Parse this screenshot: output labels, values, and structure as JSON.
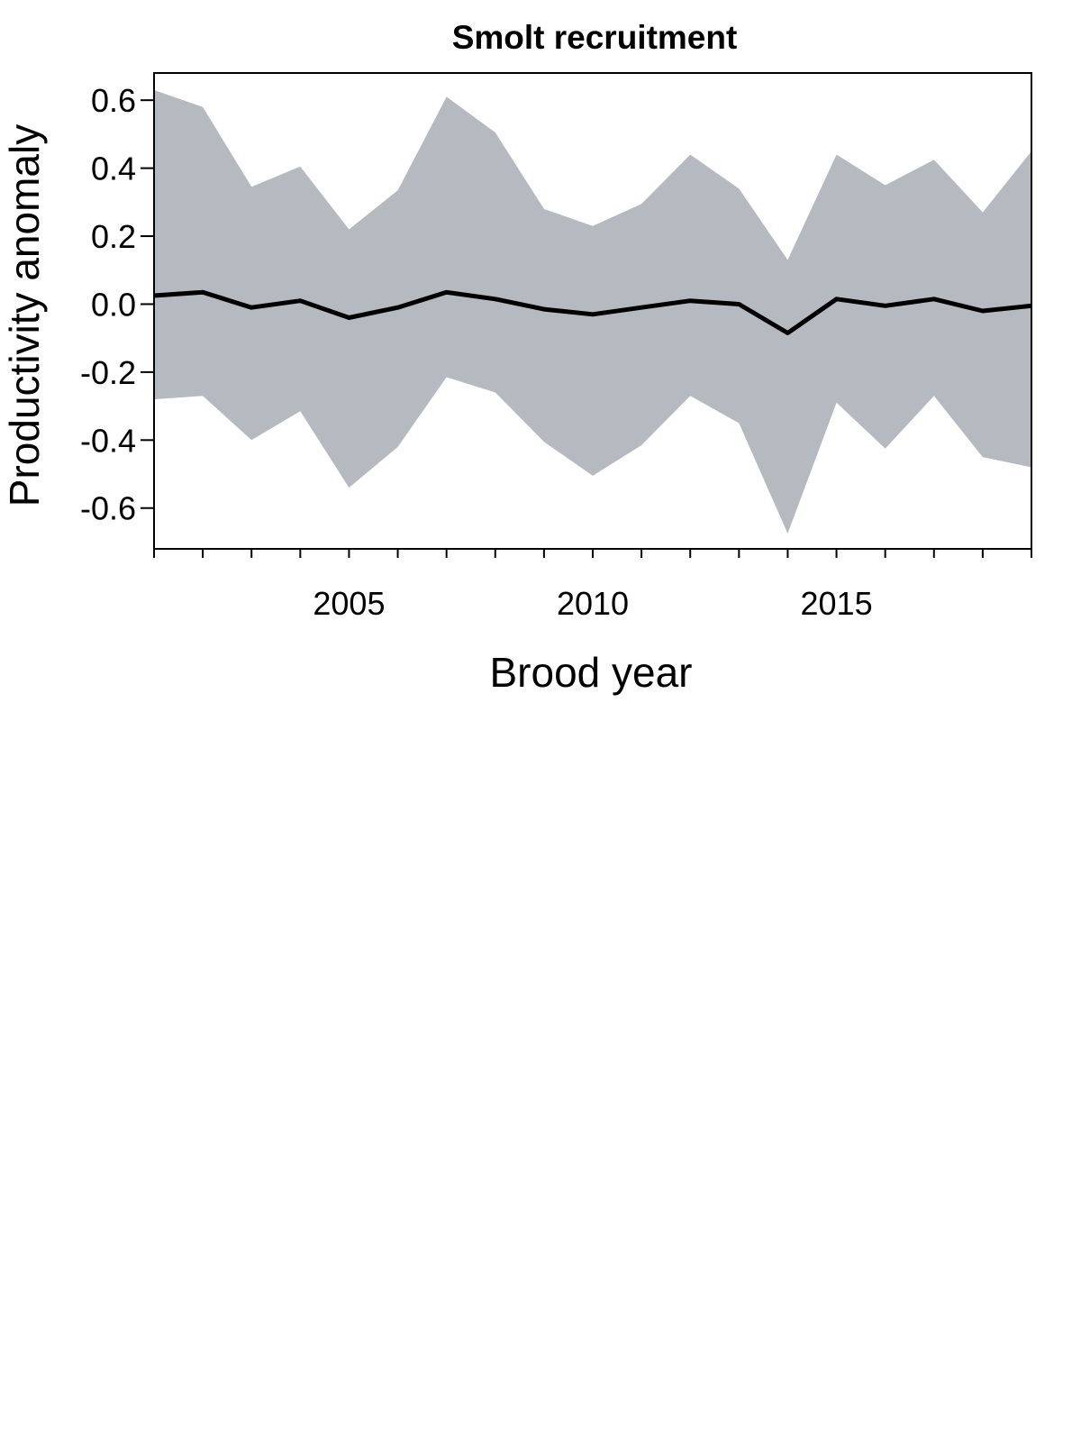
{
  "chart_data": {
    "type": "area",
    "title": "Smolt recruitment",
    "xlabel": "Brood year",
    "ylabel": "Productivity anomaly",
    "xlim": [
      2001,
      2019
    ],
    "ylim": [
      -0.72,
      0.68
    ],
    "x_ticks": [
      2005,
      2010,
      2015
    ],
    "x_minor_ticks": [
      2001,
      2002,
      2003,
      2004,
      2005,
      2006,
      2007,
      2008,
      2009,
      2010,
      2011,
      2012,
      2013,
      2014,
      2015,
      2016,
      2017,
      2018,
      2019
    ],
    "y_ticks": [
      0.6,
      0.4,
      0.2,
      0.0,
      -0.2,
      -0.4,
      -0.6
    ],
    "y_tick_labels": [
      "0.6",
      "0.4",
      "0.2",
      "0.0",
      "-0.2",
      "-0.4",
      "-0.6"
    ],
    "x_tick_labels": [
      "2005",
      "2010",
      "2015"
    ],
    "grid": false,
    "legend": "none",
    "colors": {
      "band": "#b5bac1",
      "line": "#000000",
      "axes": "#000000"
    },
    "x": [
      2001,
      2002,
      2003,
      2004,
      2005,
      2006,
      2007,
      2008,
      2009,
      2010,
      2011,
      2012,
      2013,
      2014,
      2015,
      2016,
      2017,
      2018,
      2019
    ],
    "series": [
      {
        "role": "median",
        "values": [
          0.025,
          0.035,
          -0.01,
          0.01,
          -0.04,
          -0.01,
          0.035,
          0.015,
          -0.015,
          -0.03,
          -0.01,
          0.01,
          0.0,
          -0.085,
          0.015,
          -0.005,
          0.015,
          -0.02,
          -0.005
        ]
      },
      {
        "role": "upper",
        "values": [
          0.63,
          0.58,
          0.345,
          0.405,
          0.22,
          0.335,
          0.61,
          0.505,
          0.28,
          0.23,
          0.295,
          0.44,
          0.34,
          0.13,
          0.44,
          0.35,
          0.425,
          0.27,
          0.45
        ]
      },
      {
        "role": "lower",
        "values": [
          -0.28,
          -0.27,
          -0.4,
          -0.315,
          -0.54,
          -0.42,
          -0.215,
          -0.26,
          -0.405,
          -0.505,
          -0.415,
          -0.27,
          -0.35,
          -0.675,
          -0.29,
          -0.425,
          -0.27,
          -0.45,
          -0.48
        ]
      }
    ]
  }
}
